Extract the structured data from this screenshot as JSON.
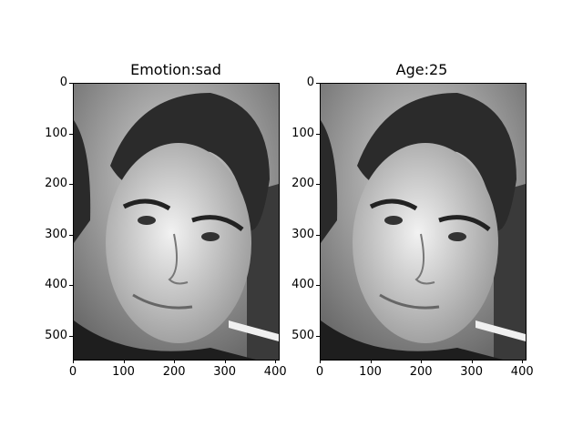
{
  "figure": {
    "panels": [
      {
        "title": "Emotion:sad",
        "image_description_icon": "grayscale-face-photo-icon",
        "y_ticks": [
          "0",
          "100",
          "200",
          "300",
          "400",
          "500"
        ],
        "x_ticks": [
          "0",
          "100",
          "200",
          "300",
          "400"
        ]
      },
      {
        "title": "Age:25",
        "image_description_icon": "grayscale-face-photo-icon",
        "y_ticks": [
          "0",
          "100",
          "200",
          "300",
          "400",
          "500"
        ],
        "x_ticks": [
          "0",
          "100",
          "200",
          "300",
          "400"
        ]
      }
    ],
    "image_extent": {
      "x_max": 405,
      "y_max": 545
    }
  },
  "colors": {
    "background": "#ffffff",
    "axis": "#000000"
  }
}
